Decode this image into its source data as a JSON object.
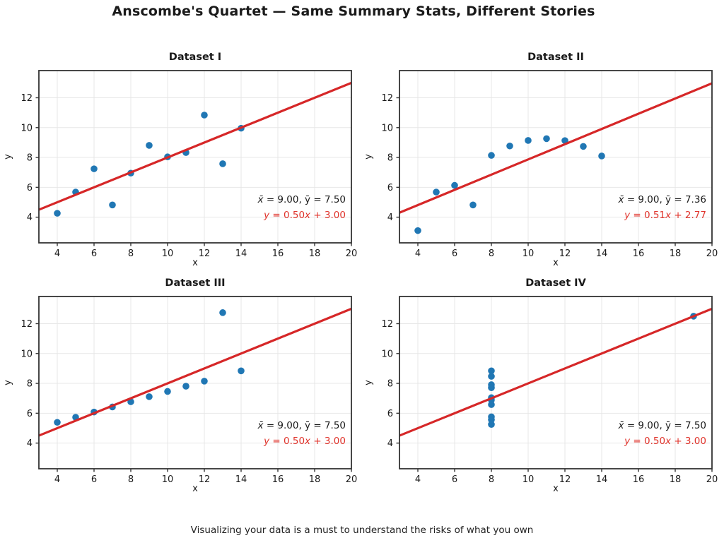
{
  "title": "Anscombe's Quartet — Same Summary Stats, Different Stories",
  "caption": "Visualizing your data is a must to understand the risks of what you own",
  "colors": {
    "point": "#2077b4",
    "line": "#d62728",
    "fit_text": "#e0342c",
    "grid": "#e7e7e7",
    "spine": "#333333",
    "text": "#1a1a1a"
  },
  "chart_data": [
    {
      "type": "scatter",
      "title": "Dataset I",
      "xlabel": "x",
      "ylabel": "y",
      "x": [
        10,
        8,
        13,
        9,
        11,
        14,
        6,
        4,
        12,
        7,
        5
      ],
      "y": [
        8.04,
        6.95,
        7.58,
        8.81,
        8.33,
        9.96,
        7.24,
        4.26,
        10.84,
        4.82,
        5.68
      ],
      "fit": {
        "slope": 0.5,
        "intercept": 3.0,
        "label": "y = 0.50x + 3.00"
      },
      "stats_label": "x̄ = 9.00, ȳ = 7.50",
      "xlim": [
        3,
        20
      ],
      "ylim": [
        2.28,
        13.82
      ],
      "xticks": [
        4,
        6,
        8,
        10,
        12,
        14,
        16,
        18,
        20
      ],
      "yticks": [
        4,
        6,
        8,
        10,
        12
      ],
      "grid": true
    },
    {
      "type": "scatter",
      "title": "Dataset II",
      "xlabel": "x",
      "ylabel": "y",
      "x": [
        10,
        8,
        13,
        9,
        11,
        14,
        6,
        4,
        12,
        7,
        5
      ],
      "y": [
        9.14,
        8.14,
        8.74,
        8.77,
        9.26,
        8.1,
        6.13,
        3.1,
        9.13,
        4.82,
        5.68
      ],
      "fit": {
        "slope": 0.51,
        "intercept": 2.77,
        "label": "y = 0.51x + 2.77"
      },
      "stats_label": "x̄ = 9.00, ȳ = 7.36",
      "xlim": [
        3,
        20
      ],
      "ylim": [
        2.28,
        13.82
      ],
      "xticks": [
        4,
        6,
        8,
        10,
        12,
        14,
        16,
        18,
        20
      ],
      "yticks": [
        4,
        6,
        8,
        10,
        12
      ],
      "grid": true
    },
    {
      "type": "scatter",
      "title": "Dataset III",
      "xlabel": "x",
      "ylabel": "y",
      "x": [
        10,
        8,
        13,
        9,
        11,
        14,
        6,
        4,
        12,
        7,
        5
      ],
      "y": [
        7.46,
        6.77,
        12.74,
        7.11,
        7.81,
        8.84,
        6.08,
        5.39,
        8.15,
        6.42,
        5.73
      ],
      "fit": {
        "slope": 0.5,
        "intercept": 3.0,
        "label": "y = 0.50x + 3.00"
      },
      "stats_label": "x̄ = 9.00, ȳ = 7.50",
      "xlim": [
        3,
        20
      ],
      "ylim": [
        2.28,
        13.82
      ],
      "xticks": [
        4,
        6,
        8,
        10,
        12,
        14,
        16,
        18,
        20
      ],
      "yticks": [
        4,
        6,
        8,
        10,
        12
      ],
      "grid": true
    },
    {
      "type": "scatter",
      "title": "Dataset IV",
      "xlabel": "x",
      "ylabel": "y",
      "x": [
        8,
        8,
        8,
        8,
        8,
        8,
        8,
        19,
        8,
        8,
        8
      ],
      "y": [
        6.58,
        5.76,
        7.71,
        8.84,
        8.47,
        7.04,
        5.25,
        12.5,
        5.56,
        7.91,
        6.89
      ],
      "fit": {
        "slope": 0.5,
        "intercept": 3.0,
        "label": "y = 0.50x + 3.00"
      },
      "stats_label": "x̄ = 9.00, ȳ = 7.50",
      "xlim": [
        3,
        20
      ],
      "ylim": [
        2.28,
        13.82
      ],
      "xticks": [
        4,
        6,
        8,
        10,
        12,
        14,
        16,
        18,
        20
      ],
      "yticks": [
        4,
        6,
        8,
        10,
        12
      ],
      "grid": true
    }
  ]
}
